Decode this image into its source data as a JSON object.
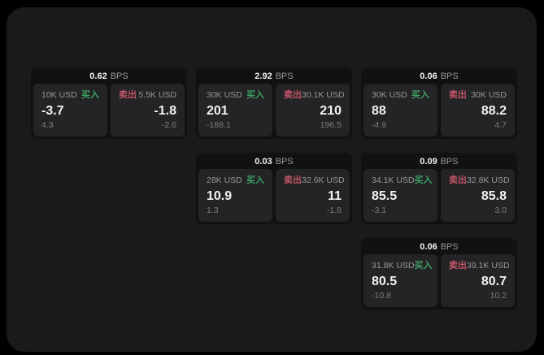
{
  "colors": {
    "page_bg": "#000000",
    "panel_bg": "#1a1a1c",
    "card_bg": "#111113",
    "tile_bg": "#242426",
    "text_primary": "#f2f2f2",
    "text_secondary": "#97979b",
    "text_muted": "#7d7d81",
    "buy_green": "#3f9e62",
    "sell_red": "#c25568"
  },
  "labels": {
    "bps_suffix": "BPS",
    "buy": "买入",
    "sell": "卖出"
  },
  "cards": [
    {
      "bps": "0.62",
      "buy": {
        "amount": "10K USD",
        "price": "-3.7",
        "delta": "4.3"
      },
      "sell": {
        "amount": "5.5K USD",
        "price": "-1.8",
        "delta": "-2.6"
      }
    },
    {
      "bps": "2.92",
      "buy": {
        "amount": "30K USD",
        "price": "201",
        "delta": "-188.1"
      },
      "sell": {
        "amount": "30.1K USD",
        "price": "210",
        "delta": "196.5"
      }
    },
    {
      "bps": "0.06",
      "buy": {
        "amount": "30K USD",
        "price": "88",
        "delta": "-4.9"
      },
      "sell": {
        "amount": "30K USD",
        "price": "88.2",
        "delta": "4.7"
      }
    },
    {
      "bps": "0.03",
      "buy": {
        "amount": "28K USD",
        "price": "10.9",
        "delta": "1.3"
      },
      "sell": {
        "amount": "32.6K USD",
        "price": "11",
        "delta": "-1.8"
      }
    },
    {
      "bps": "0.09",
      "buy": {
        "amount": "34.1K USD",
        "price": "85.5",
        "delta": "-3.1"
      },
      "sell": {
        "amount": "32.8K USD",
        "price": "85.8",
        "delta": "3.0"
      }
    },
    {
      "bps": "0.06",
      "buy": {
        "amount": "31.8K USD",
        "price": "80.5",
        "delta": "-10.8"
      },
      "sell": {
        "amount": "39.1K USD",
        "price": "80.7",
        "delta": "10.2"
      }
    }
  ]
}
